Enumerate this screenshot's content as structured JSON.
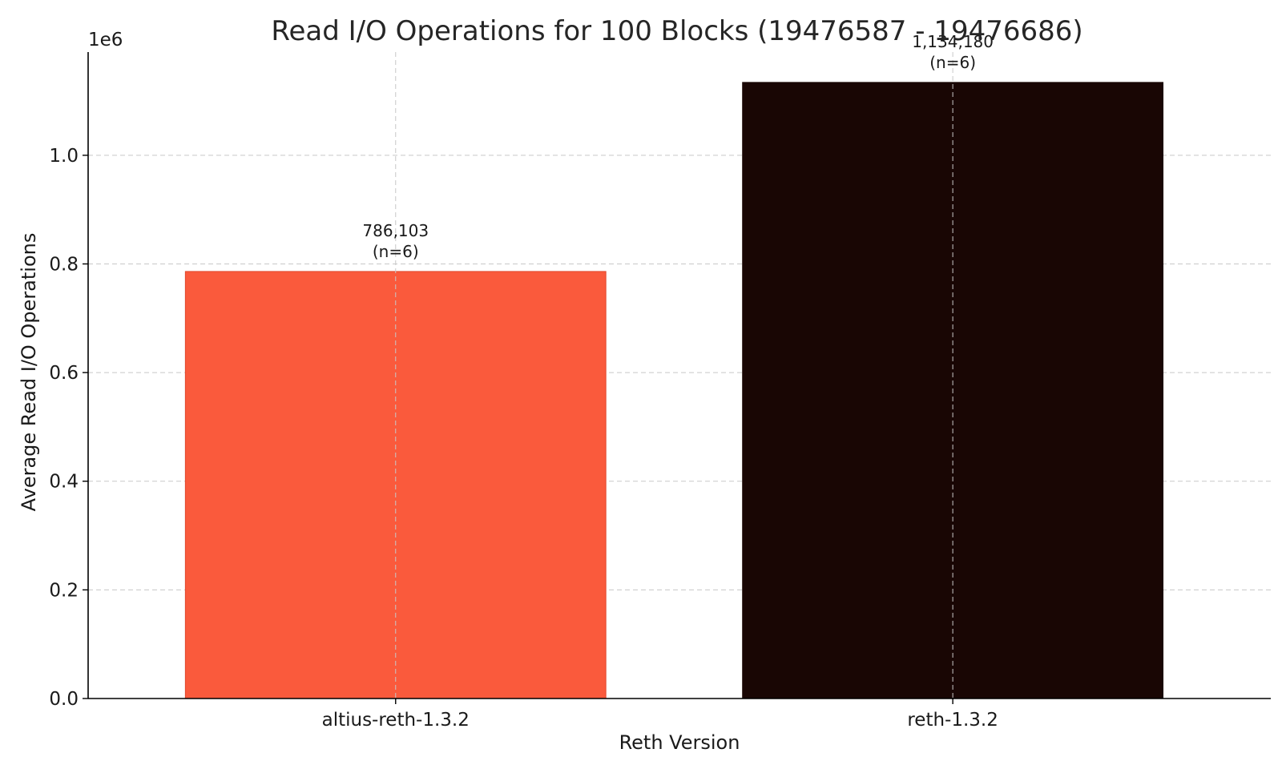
{
  "chart_data": {
    "type": "bar",
    "title": "Read I/O Operations for 100 Blocks (19476587 - 19476686)",
    "xlabel": "Reth Version",
    "ylabel": "Average Read I/O Operations",
    "y_offset_label": "1e6",
    "categories": [
      "altius-reth-1.3.2",
      "reth-1.3.2"
    ],
    "values": [
      786103,
      1134180
    ],
    "data_labels": [
      {
        "value": "786,103",
        "note": "(n=6)"
      },
      {
        "value": "1,134,180",
        "note": "(n=6)"
      }
    ],
    "bar_colors": [
      "#fa5a3c",
      "#190604"
    ],
    "ylim": [
      0,
      1190000
    ],
    "y_ticks": [
      0,
      200000,
      400000,
      600000,
      800000,
      1000000
    ],
    "y_tick_labels": [
      "0.0",
      "0.2",
      "0.4",
      "0.6",
      "0.8",
      "1.0"
    ],
    "grid": true
  }
}
